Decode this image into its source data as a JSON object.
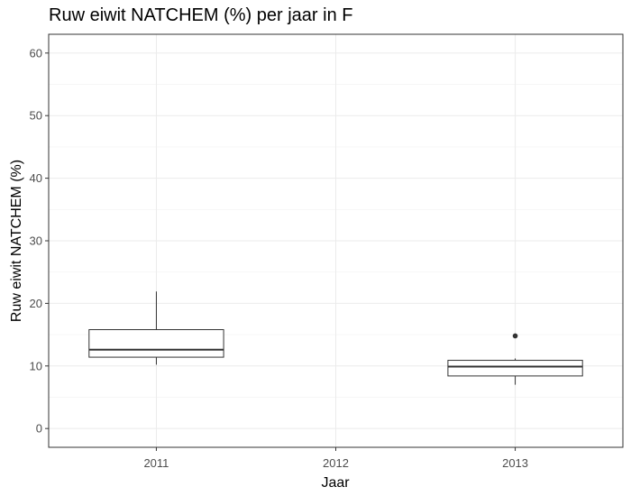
{
  "chart_data": {
    "type": "box",
    "title": "Ruw eiwit NATCHEM (%) per jaar in F",
    "xlabel": "Jaar",
    "ylabel": "Ruw eiwit NATCHEM (%)",
    "categories": [
      "2011",
      "2012",
      "2013"
    ],
    "ylim": [
      -3,
      63
    ],
    "yticks": [
      0,
      10,
      20,
      30,
      40,
      50,
      60
    ],
    "grid": true,
    "boxes": [
      {
        "category": "2011",
        "min": 10.2,
        "q1": 11.4,
        "median": 12.6,
        "q3": 15.8,
        "max": 21.9,
        "outliers": []
      },
      {
        "category": "2013",
        "min": 7.0,
        "q1": 8.4,
        "median": 9.9,
        "q3": 10.9,
        "max": 11.2,
        "outliers": [
          14.8
        ]
      }
    ]
  }
}
